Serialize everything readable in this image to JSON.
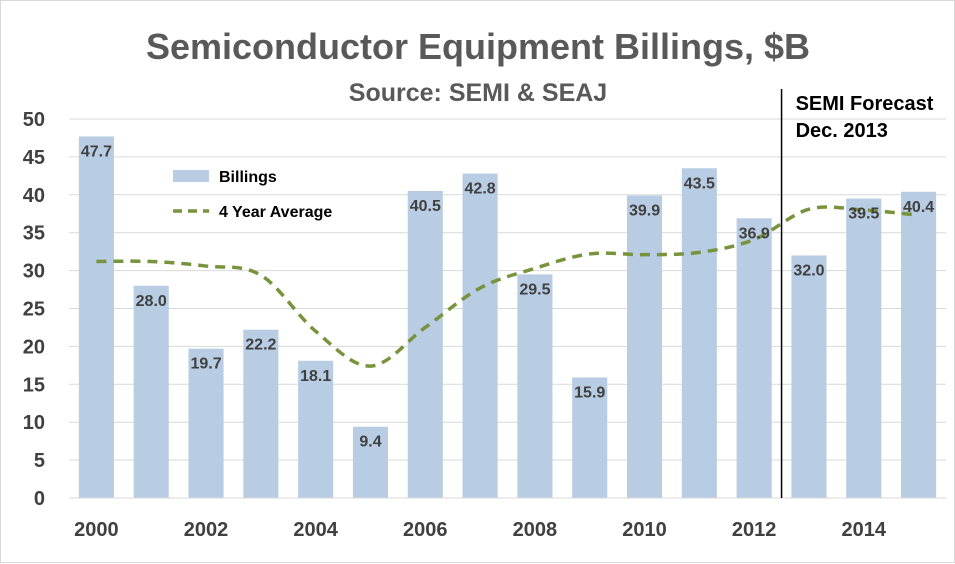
{
  "chart_data": {
    "type": "bar",
    "title": "Semiconductor Equipment Billings, $B",
    "subtitle": "Source: SEMI & SEAJ",
    "categories": [
      "2000",
      "2001",
      "2002",
      "2003",
      "2004",
      "2005",
      "2006",
      "2007",
      "2008",
      "2009",
      "2010",
      "2011",
      "2012",
      "2013",
      "2014",
      "2015"
    ],
    "x_tick_labels": [
      "2000",
      "",
      "2002",
      "",
      "2004",
      "",
      "2006",
      "",
      "2008",
      "",
      "2010",
      "",
      "2012",
      "",
      "2014",
      ""
    ],
    "series": [
      {
        "name": "Billings",
        "type": "bar",
        "color": "#b8cce4",
        "values": [
          47.7,
          28.0,
          19.7,
          22.2,
          18.1,
          9.4,
          40.5,
          42.8,
          29.5,
          15.9,
          39.9,
          43.5,
          36.9,
          32.0,
          39.5,
          40.4
        ],
        "labels": [
          "47.7",
          "28.0",
          "19.7",
          "22.2",
          "18.1",
          "9.4",
          "40.5",
          "42.8",
          "29.5",
          "15.9",
          "39.9",
          "43.5",
          "36.9",
          "32.0",
          "39.5",
          "40.4"
        ]
      },
      {
        "name": "4 Year Average",
        "type": "line",
        "style": "dashed",
        "color": "#77933c",
        "values": [
          31.2,
          31.2,
          30.6,
          29.4,
          22.0,
          17.4,
          22.5,
          27.7,
          30.3,
          32.2,
          32.1,
          32.4,
          34.1,
          38.1,
          38.0,
          37.3
        ]
      }
    ],
    "y_ticks": [
      0,
      5,
      10,
      15,
      20,
      25,
      30,
      35,
      40,
      45,
      50
    ],
    "ylim": [
      0,
      50
    ],
    "grid": true,
    "legend_position": "upper-left",
    "annotation": {
      "text_line1": "SEMI Forecast",
      "text_line2": "Dec. 2013",
      "after_category": "2012"
    }
  }
}
